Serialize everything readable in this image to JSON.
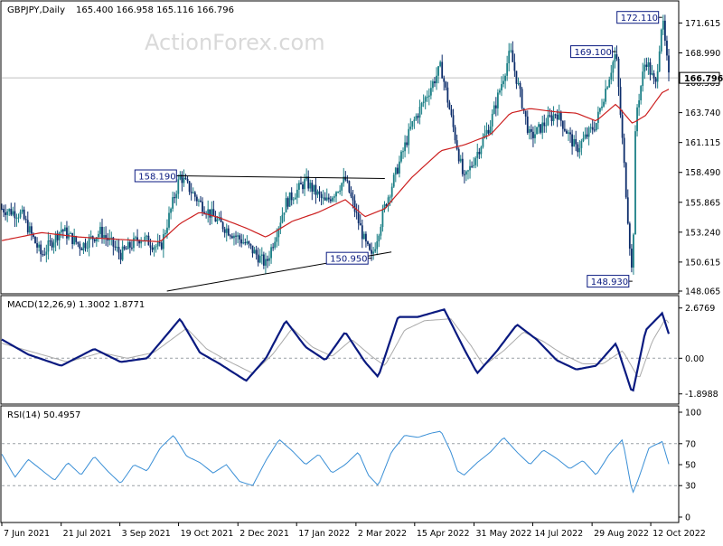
{
  "header": {
    "symbol": "GBPJPY,Daily",
    "ohlc": "165.400 166.958 165.116 166.796"
  },
  "watermark": "ActionForex.com",
  "colors": {
    "bull": "#1b7f86",
    "bear": "#0c2d6b",
    "ma": "#cc1f1f",
    "macd_main": "#0a1a80",
    "macd_signal": "#aaaaaa",
    "rsi": "#3a8fd6",
    "grid": "#9aa0a6",
    "trendline": "#000000"
  },
  "chart_data": [
    {
      "type": "candlestick",
      "title": "GBPJPY,Daily 165.400 166.958 165.116 166.796",
      "ylim": [
        148.065,
        173.0
      ],
      "y_ticks": [
        "171.615",
        "168.990",
        "166.365",
        "163.740",
        "161.115",
        "158.490",
        "155.865",
        "153.240",
        "150.615",
        "148.065"
      ],
      "current_price_label": "166.796",
      "current_price": 166.796,
      "x_tick_labels": [
        "7 Jun 2021",
        "21 Jul 2021",
        "3 Sep 2021",
        "19 Oct 2021",
        "2 Dec 2021",
        "17 Jan 2022",
        "2 Mar 2022",
        "15 Apr 2022",
        "31 May 2022",
        "14 Jul 2022",
        "29 Aug 2022",
        "12 Oct 2022"
      ],
      "x_tick_fractions": [
        0.0,
        0.089,
        0.177,
        0.265,
        0.354,
        0.442,
        0.531,
        0.619,
        0.708,
        0.796,
        0.885,
        0.973
      ],
      "price_path": [
        [
          0.0,
          155.3
        ],
        [
          0.03,
          154.8
        ],
        [
          0.06,
          151.2
        ],
        [
          0.09,
          153.5
        ],
        [
          0.12,
          152.0
        ],
        [
          0.15,
          153.3
        ],
        [
          0.18,
          151.3
        ],
        [
          0.21,
          152.8
        ],
        [
          0.24,
          151.8
        ],
        [
          0.27,
          158.19
        ],
        [
          0.3,
          155.8
        ],
        [
          0.33,
          154.0
        ],
        [
          0.37,
          152.2
        ],
        [
          0.4,
          150.4
        ],
        [
          0.43,
          155.8
        ],
        [
          0.46,
          157.7
        ],
        [
          0.49,
          155.8
        ],
        [
          0.52,
          157.9
        ],
        [
          0.55,
          152.3
        ],
        [
          0.56,
          150.95
        ],
        [
          0.58,
          155.5
        ],
        [
          0.62,
          162.5
        ],
        [
          0.665,
          167.8
        ],
        [
          0.7,
          157.7
        ],
        [
          0.74,
          162.8
        ],
        [
          0.77,
          169.1
        ],
        [
          0.8,
          161.5
        ],
        [
          0.84,
          163.8
        ],
        [
          0.87,
          160.5
        ],
        [
          0.9,
          162.8
        ],
        [
          0.93,
          169.1
        ],
        [
          0.955,
          148.93
        ],
        [
          0.96,
          163.5
        ],
        [
          0.975,
          168.5
        ],
        [
          0.99,
          166.0
        ],
        [
          1.0,
          172.11
        ],
        [
          1.01,
          166.796
        ]
      ],
      "ma_path": [
        [
          0.0,
          152.5
        ],
        [
          0.06,
          153.2
        ],
        [
          0.12,
          152.8
        ],
        [
          0.18,
          152.6
        ],
        [
          0.24,
          152.4
        ],
        [
          0.27,
          154.0
        ],
        [
          0.3,
          155.0
        ],
        [
          0.33,
          154.5
        ],
        [
          0.37,
          153.6
        ],
        [
          0.4,
          152.8
        ],
        [
          0.44,
          154.2
        ],
        [
          0.48,
          155.0
        ],
        [
          0.52,
          156.1
        ],
        [
          0.55,
          154.6
        ],
        [
          0.58,
          155.3
        ],
        [
          0.62,
          158.0
        ],
        [
          0.665,
          160.4
        ],
        [
          0.7,
          160.9
        ],
        [
          0.74,
          161.8
        ],
        [
          0.77,
          163.7
        ],
        [
          0.8,
          164.1
        ],
        [
          0.84,
          163.8
        ],
        [
          0.87,
          163.7
        ],
        [
          0.9,
          163.0
        ],
        [
          0.93,
          164.5
        ],
        [
          0.955,
          162.8
        ],
        [
          0.975,
          163.5
        ],
        [
          1.0,
          165.5
        ],
        [
          1.01,
          165.8
        ]
      ],
      "annotations": [
        {
          "label": "158.190",
          "t": 0.27,
          "price": 158.19
        },
        {
          "label": "150.950",
          "t": 0.56,
          "price": 150.95
        },
        {
          "label": "169.100",
          "t": 0.93,
          "price": 169.1
        },
        {
          "label": "148.930",
          "t": 0.955,
          "price": 148.93
        },
        {
          "label": "172.110",
          "t": 1.0,
          "price": 172.11
        }
      ],
      "trendlines": [
        {
          "from": [
            0.27,
            158.19
          ],
          "to": [
            0.58,
            157.95
          ]
        },
        {
          "from": [
            0.25,
            148.065
          ],
          "to": [
            0.59,
            151.5
          ]
        }
      ]
    },
    {
      "type": "line",
      "title": "MACD(12,26,9) 1.3002 1.8771",
      "ylim": [
        -2.2,
        3.0
      ],
      "y_ticks": [
        "2.6769",
        "0.00",
        "-1.8988"
      ],
      "series": [
        {
          "name": "main",
          "path": [
            [
              0.0,
              1.0
            ],
            [
              0.04,
              0.2
            ],
            [
              0.09,
              -0.4
            ],
            [
              0.14,
              0.5
            ],
            [
              0.18,
              -0.2
            ],
            [
              0.22,
              0.0
            ],
            [
              0.27,
              2.1
            ],
            [
              0.3,
              0.3
            ],
            [
              0.33,
              -0.3
            ],
            [
              0.37,
              -1.2
            ],
            [
              0.4,
              0.0
            ],
            [
              0.43,
              2.0
            ],
            [
              0.46,
              0.6
            ],
            [
              0.49,
              -0.1
            ],
            [
              0.52,
              1.4
            ],
            [
              0.55,
              -0.2
            ],
            [
              0.57,
              -1.0
            ],
            [
              0.6,
              2.2
            ],
            [
              0.63,
              2.2
            ],
            [
              0.67,
              2.6
            ],
            [
              0.7,
              0.5
            ],
            [
              0.72,
              -0.8
            ],
            [
              0.75,
              0.4
            ],
            [
              0.78,
              1.8
            ],
            [
              0.81,
              1.0
            ],
            [
              0.84,
              -0.1
            ],
            [
              0.87,
              -0.6
            ],
            [
              0.9,
              -0.4
            ],
            [
              0.93,
              0.8
            ],
            [
              0.955,
              -1.9
            ],
            [
              0.975,
              1.5
            ],
            [
              1.0,
              2.4
            ],
            [
              1.01,
              1.3
            ]
          ]
        },
        {
          "name": "signal",
          "path": [
            [
              0.0,
              0.8
            ],
            [
              0.05,
              0.3
            ],
            [
              0.1,
              -0.2
            ],
            [
              0.15,
              0.3
            ],
            [
              0.19,
              0.0
            ],
            [
              0.23,
              0.3
            ],
            [
              0.28,
              1.6
            ],
            [
              0.31,
              0.5
            ],
            [
              0.34,
              -0.1
            ],
            [
              0.38,
              -0.8
            ],
            [
              0.41,
              0.2
            ],
            [
              0.44,
              1.6
            ],
            [
              0.47,
              0.6
            ],
            [
              0.5,
              0.1
            ],
            [
              0.53,
              1.0
            ],
            [
              0.56,
              0.1
            ],
            [
              0.58,
              -0.4
            ],
            [
              0.61,
              1.5
            ],
            [
              0.64,
              2.0
            ],
            [
              0.68,
              2.1
            ],
            [
              0.71,
              0.7
            ],
            [
              0.73,
              -0.4
            ],
            [
              0.76,
              0.4
            ],
            [
              0.79,
              1.4
            ],
            [
              0.82,
              0.9
            ],
            [
              0.85,
              0.2
            ],
            [
              0.88,
              -0.3
            ],
            [
              0.91,
              -0.3
            ],
            [
              0.94,
              0.4
            ],
            [
              0.965,
              -1.1
            ],
            [
              0.985,
              0.9
            ],
            [
              1.005,
              2.1
            ],
            [
              1.01,
              1.88
            ]
          ]
        }
      ]
    },
    {
      "type": "line",
      "title": "RSI(14) 50.4957",
      "ylim": [
        0,
        100
      ],
      "y_ticks": [
        "100",
        "70",
        "50",
        "30",
        "0"
      ],
      "levels": [
        70,
        30
      ],
      "series": [
        {
          "name": "rsi",
          "path": [
            [
              0.0,
              60
            ],
            [
              0.02,
              38
            ],
            [
              0.04,
              55
            ],
            [
              0.06,
              45
            ],
            [
              0.08,
              35
            ],
            [
              0.1,
              52
            ],
            [
              0.12,
              40
            ],
            [
              0.14,
              58
            ],
            [
              0.16,
              44
            ],
            [
              0.18,
              32
            ],
            [
              0.2,
              50
            ],
            [
              0.22,
              44
            ],
            [
              0.24,
              66
            ],
            [
              0.26,
              78
            ],
            [
              0.28,
              58
            ],
            [
              0.3,
              52
            ],
            [
              0.32,
              42
            ],
            [
              0.34,
              50
            ],
            [
              0.36,
              34
            ],
            [
              0.38,
              30
            ],
            [
              0.4,
              54
            ],
            [
              0.42,
              74
            ],
            [
              0.44,
              63
            ],
            [
              0.46,
              50
            ],
            [
              0.48,
              60
            ],
            [
              0.5,
              42
            ],
            [
              0.52,
              50
            ],
            [
              0.54,
              62
            ],
            [
              0.555,
              40
            ],
            [
              0.57,
              30
            ],
            [
              0.59,
              62
            ],
            [
              0.61,
              78
            ],
            [
              0.63,
              76
            ],
            [
              0.65,
              80
            ],
            [
              0.665,
              82
            ],
            [
              0.68,
              62
            ],
            [
              0.69,
              44
            ],
            [
              0.7,
              40
            ],
            [
              0.72,
              52
            ],
            [
              0.74,
              62
            ],
            [
              0.76,
              76
            ],
            [
              0.78,
              62
            ],
            [
              0.8,
              50
            ],
            [
              0.82,
              64
            ],
            [
              0.84,
              56
            ],
            [
              0.86,
              46
            ],
            [
              0.88,
              54
            ],
            [
              0.9,
              40
            ],
            [
              0.92,
              60
            ],
            [
              0.94,
              74
            ],
            [
              0.955,
              22
            ],
            [
              0.965,
              38
            ],
            [
              0.98,
              66
            ],
            [
              1.0,
              72
            ],
            [
              1.01,
              50.5
            ]
          ]
        }
      ]
    }
  ]
}
